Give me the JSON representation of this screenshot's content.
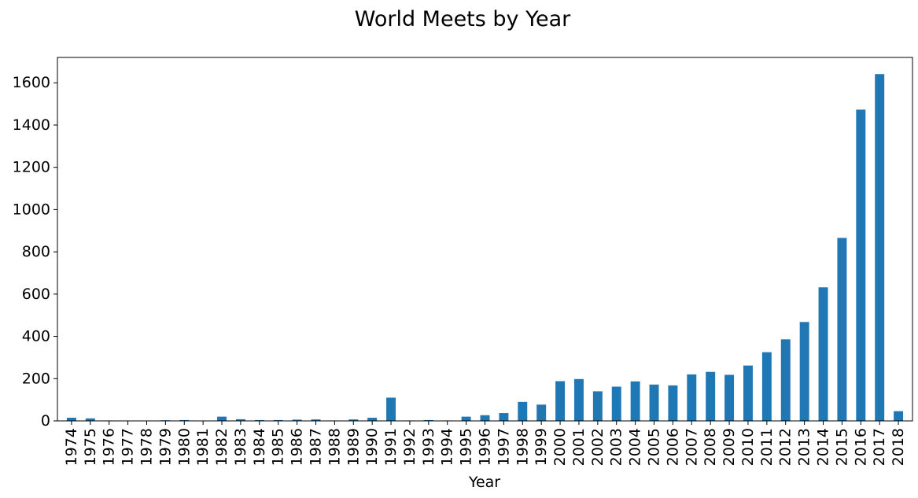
{
  "chart_data": {
    "type": "bar",
    "title": "World Meets by Year",
    "xlabel": "Year",
    "ylabel": "",
    "ylim": [
      0,
      1720
    ],
    "yticks": [
      0,
      200,
      400,
      600,
      800,
      1000,
      1200,
      1400,
      1600
    ],
    "grid": false,
    "legend": "none",
    "bar_color": "#1f77b4",
    "categories": [
      "1974",
      "1975",
      "1976",
      "1977",
      "1978",
      "1979",
      "1980",
      "1981",
      "1982",
      "1983",
      "1984",
      "1985",
      "1986",
      "1987",
      "1988",
      "1989",
      "1990",
      "1991",
      "1992",
      "1993",
      "1994",
      "1995",
      "1996",
      "1997",
      "1998",
      "1999",
      "2000",
      "2001",
      "2002",
      "2003",
      "2004",
      "2005",
      "2006",
      "2007",
      "2008",
      "2009",
      "2010",
      "2011",
      "2012",
      "2013",
      "2014",
      "2015",
      "2016",
      "2017",
      "2018"
    ],
    "values": [
      15,
      12,
      2,
      1,
      1,
      3,
      4,
      1,
      20,
      8,
      4,
      4,
      6,
      7,
      2,
      7,
      15,
      110,
      2,
      4,
      2,
      20,
      27,
      37,
      90,
      77,
      188,
      198,
      140,
      162,
      187,
      172,
      168,
      220,
      232,
      218,
      262,
      325,
      386,
      468,
      632,
      866,
      1473,
      1641,
      46
    ]
  }
}
